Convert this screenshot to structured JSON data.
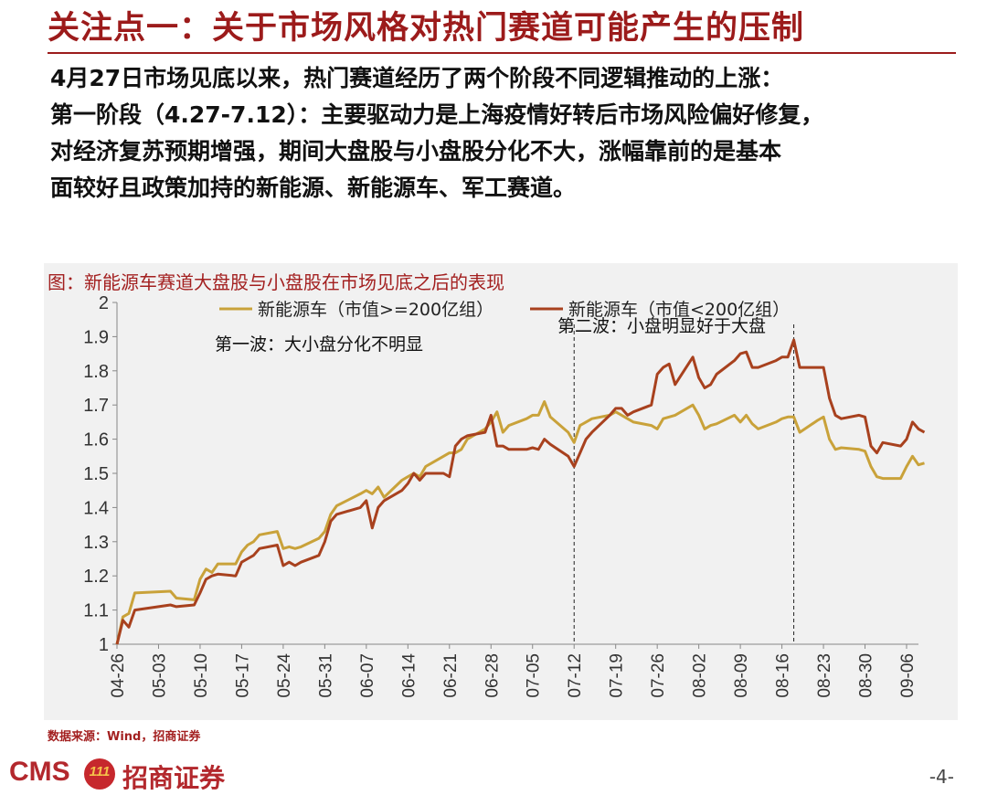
{
  "header": {
    "title": "关注点一：关于市场风格对热门赛道可能产生的压制"
  },
  "body": {
    "lines": [
      "4月27日市场见底以来，热门赛道经历了两个阶段不同逻辑推动的上涨：",
      "第一阶段（4.27-7.12）：主要驱动力是上海疫情好转后市场风险偏好修复，",
      "对经济复苏预期增强，期间大盘股与小盘股分化不大，涨幅靠前的是基本",
      "面较好且政策加持的新能源、新能源车、军工赛道。"
    ]
  },
  "figure": {
    "title": "图：新能源车赛道大盘股与小盘股在市场见底之后的表现"
  },
  "source": "数据来源：Wind，招商证券",
  "footer": {
    "logo_text": "CMS",
    "logo_badge": "111",
    "company": "招商证券",
    "page": "-4-"
  },
  "colors": {
    "large_cap": "#c9a23a",
    "small_cap": "#a8411e",
    "accent": "#9c1b1b"
  },
  "chart_data": {
    "type": "line",
    "title": "",
    "xlabel": "",
    "ylabel": "",
    "ylim": [
      1,
      2
    ],
    "yticks": [
      "1",
      "1.1",
      "1.2",
      "1.3",
      "1.4",
      "1.5",
      "1.6",
      "1.7",
      "1.8",
      "1.9",
      "2"
    ],
    "x_ticks": [
      "04-26",
      "05-03",
      "05-10",
      "05-17",
      "05-24",
      "05-31",
      "06-07",
      "06-14",
      "06-21",
      "06-28",
      "07-05",
      "07-12",
      "07-19",
      "07-26",
      "08-02",
      "08-09",
      "08-16",
      "08-23",
      "08-30",
      "09-06"
    ],
    "x_range": [
      "04-26",
      "09-08"
    ],
    "legend_position": "top",
    "grid": false,
    "annotations": [
      {
        "text": "第一波：大小盘分化不明显",
        "x": "05-03",
        "y": 1.88
      },
      {
        "text": "第二波：小盘明显好于大盘",
        "x": "07-12",
        "y": 1.935
      }
    ],
    "vlines": [
      "07-12",
      "08-18"
    ],
    "series": [
      {
        "name": "新能源车（市值>=200亿组）",
        "color": "#c9a23a",
        "points": [
          [
            "04-26",
            1.0
          ],
          [
            "04-27",
            1.08
          ],
          [
            "04-28",
            1.09
          ],
          [
            "04-29",
            1.15
          ],
          [
            "05-05",
            1.155
          ],
          [
            "05-06",
            1.135
          ],
          [
            "05-09",
            1.13
          ],
          [
            "05-10",
            1.19
          ],
          [
            "05-11",
            1.22
          ],
          [
            "05-12",
            1.21
          ],
          [
            "05-13",
            1.235
          ],
          [
            "05-16",
            1.235
          ],
          [
            "05-17",
            1.27
          ],
          [
            "05-18",
            1.29
          ],
          [
            "05-19",
            1.3
          ],
          [
            "05-20",
            1.32
          ],
          [
            "05-23",
            1.33
          ],
          [
            "05-24",
            1.28
          ],
          [
            "05-25",
            1.285
          ],
          [
            "05-26",
            1.28
          ],
          [
            "05-27",
            1.285
          ],
          [
            "05-30",
            1.31
          ],
          [
            "05-31",
            1.33
          ],
          [
            "06-01",
            1.38
          ],
          [
            "06-02",
            1.405
          ],
          [
            "06-06",
            1.44
          ],
          [
            "06-07",
            1.45
          ],
          [
            "06-08",
            1.44
          ],
          [
            "06-09",
            1.46
          ],
          [
            "06-10",
            1.43
          ],
          [
            "06-13",
            1.48
          ],
          [
            "06-14",
            1.49
          ],
          [
            "06-15",
            1.5
          ],
          [
            "06-16",
            1.49
          ],
          [
            "06-17",
            1.52
          ],
          [
            "06-20",
            1.55
          ],
          [
            "06-21",
            1.56
          ],
          [
            "06-22",
            1.56
          ],
          [
            "06-23",
            1.57
          ],
          [
            "06-24",
            1.6
          ],
          [
            "06-27",
            1.63
          ],
          [
            "06-28",
            1.65
          ],
          [
            "06-29",
            1.68
          ],
          [
            "06-30",
            1.62
          ],
          [
            "07-01",
            1.64
          ],
          [
            "07-04",
            1.66
          ],
          [
            "07-05",
            1.67
          ],
          [
            "07-06",
            1.67
          ],
          [
            "07-07",
            1.71
          ],
          [
            "07-08",
            1.665
          ],
          [
            "07-11",
            1.62
          ],
          [
            "07-12",
            1.59
          ],
          [
            "07-13",
            1.64
          ],
          [
            "07-14",
            1.65
          ],
          [
            "07-15",
            1.66
          ],
          [
            "07-18",
            1.67
          ],
          [
            "07-19",
            1.68
          ],
          [
            "07-20",
            1.67
          ],
          [
            "07-21",
            1.66
          ],
          [
            "07-22",
            1.65
          ],
          [
            "07-25",
            1.64
          ],
          [
            "07-26",
            1.63
          ],
          [
            "07-27",
            1.66
          ],
          [
            "07-28",
            1.665
          ],
          [
            "07-29",
            1.67
          ],
          [
            "08-01",
            1.7
          ],
          [
            "08-02",
            1.67
          ],
          [
            "08-03",
            1.63
          ],
          [
            "08-04",
            1.64
          ],
          [
            "08-05",
            1.645
          ],
          [
            "08-08",
            1.67
          ],
          [
            "08-09",
            1.65
          ],
          [
            "08-10",
            1.67
          ],
          [
            "08-11",
            1.645
          ],
          [
            "08-12",
            1.63
          ],
          [
            "08-15",
            1.65
          ],
          [
            "08-16",
            1.66
          ],
          [
            "08-17",
            1.665
          ],
          [
            "08-18",
            1.665
          ],
          [
            "08-19",
            1.62
          ],
          [
            "08-22",
            1.655
          ],
          [
            "08-23",
            1.665
          ],
          [
            "08-24",
            1.6
          ],
          [
            "08-25",
            1.57
          ],
          [
            "08-26",
            1.575
          ],
          [
            "08-29",
            1.57
          ],
          [
            "08-30",
            1.565
          ],
          [
            "08-31",
            1.52
          ],
          [
            "09-01",
            1.49
          ],
          [
            "09-02",
            1.485
          ],
          [
            "09-05",
            1.485
          ],
          [
            "09-06",
            1.52
          ],
          [
            "09-07",
            1.55
          ],
          [
            "09-08",
            1.525
          ],
          [
            "09-09",
            1.53
          ]
        ]
      },
      {
        "name": "新能源车（市值<200亿组）",
        "color": "#a8411e",
        "points": [
          [
            "04-26",
            1.0
          ],
          [
            "04-27",
            1.07
          ],
          [
            "04-28",
            1.05
          ],
          [
            "04-29",
            1.1
          ],
          [
            "05-05",
            1.115
          ],
          [
            "05-06",
            1.11
          ],
          [
            "05-09",
            1.115
          ],
          [
            "05-10",
            1.15
          ],
          [
            "05-11",
            1.19
          ],
          [
            "05-12",
            1.2
          ],
          [
            "05-13",
            1.205
          ],
          [
            "05-16",
            1.2
          ],
          [
            "05-17",
            1.24
          ],
          [
            "05-18",
            1.25
          ],
          [
            "05-19",
            1.26
          ],
          [
            "05-20",
            1.28
          ],
          [
            "05-23",
            1.29
          ],
          [
            "05-24",
            1.23
          ],
          [
            "05-25",
            1.24
          ],
          [
            "05-26",
            1.23
          ],
          [
            "05-27",
            1.24
          ],
          [
            "05-30",
            1.26
          ],
          [
            "05-31",
            1.3
          ],
          [
            "06-01",
            1.36
          ],
          [
            "06-02",
            1.38
          ],
          [
            "06-06",
            1.4
          ],
          [
            "06-07",
            1.42
          ],
          [
            "06-08",
            1.34
          ],
          [
            "06-09",
            1.4
          ],
          [
            "06-10",
            1.42
          ],
          [
            "06-13",
            1.45
          ],
          [
            "06-14",
            1.47
          ],
          [
            "06-15",
            1.5
          ],
          [
            "06-16",
            1.48
          ],
          [
            "06-17",
            1.5
          ],
          [
            "06-20",
            1.5
          ],
          [
            "06-21",
            1.49
          ],
          [
            "06-22",
            1.58
          ],
          [
            "06-23",
            1.6
          ],
          [
            "06-24",
            1.61
          ],
          [
            "06-27",
            1.62
          ],
          [
            "06-28",
            1.67
          ],
          [
            "06-29",
            1.58
          ],
          [
            "06-30",
            1.58
          ],
          [
            "07-01",
            1.57
          ],
          [
            "07-04",
            1.57
          ],
          [
            "07-05",
            1.575
          ],
          [
            "07-06",
            1.57
          ],
          [
            "07-07",
            1.6
          ],
          [
            "07-08",
            1.585
          ],
          [
            "07-11",
            1.55
          ],
          [
            "07-12",
            1.52
          ],
          [
            "07-13",
            1.56
          ],
          [
            "07-14",
            1.6
          ],
          [
            "07-15",
            1.62
          ],
          [
            "07-18",
            1.67
          ],
          [
            "07-19",
            1.69
          ],
          [
            "07-20",
            1.69
          ],
          [
            "07-21",
            1.67
          ],
          [
            "07-22",
            1.68
          ],
          [
            "07-25",
            1.7
          ],
          [
            "07-26",
            1.79
          ],
          [
            "07-27",
            1.81
          ],
          [
            "07-28",
            1.82
          ],
          [
            "07-29",
            1.76
          ],
          [
            "08-01",
            1.84
          ],
          [
            "08-02",
            1.78
          ],
          [
            "08-03",
            1.75
          ],
          [
            "08-04",
            1.76
          ],
          [
            "08-05",
            1.79
          ],
          [
            "08-08",
            1.83
          ],
          [
            "08-09",
            1.85
          ],
          [
            "08-10",
            1.855
          ],
          [
            "08-11",
            1.81
          ],
          [
            "08-12",
            1.81
          ],
          [
            "08-15",
            1.83
          ],
          [
            "08-16",
            1.84
          ],
          [
            "08-17",
            1.84
          ],
          [
            "08-18",
            1.89
          ],
          [
            "08-19",
            1.81
          ],
          [
            "08-22",
            1.81
          ],
          [
            "08-23",
            1.81
          ],
          [
            "08-24",
            1.72
          ],
          [
            "08-25",
            1.67
          ],
          [
            "08-26",
            1.66
          ],
          [
            "08-29",
            1.67
          ],
          [
            "08-30",
            1.665
          ],
          [
            "08-31",
            1.58
          ],
          [
            "09-01",
            1.56
          ],
          [
            "09-02",
            1.59
          ],
          [
            "09-05",
            1.58
          ],
          [
            "09-06",
            1.6
          ],
          [
            "09-07",
            1.65
          ],
          [
            "09-08",
            1.63
          ],
          [
            "09-09",
            1.62
          ]
        ]
      }
    ]
  }
}
